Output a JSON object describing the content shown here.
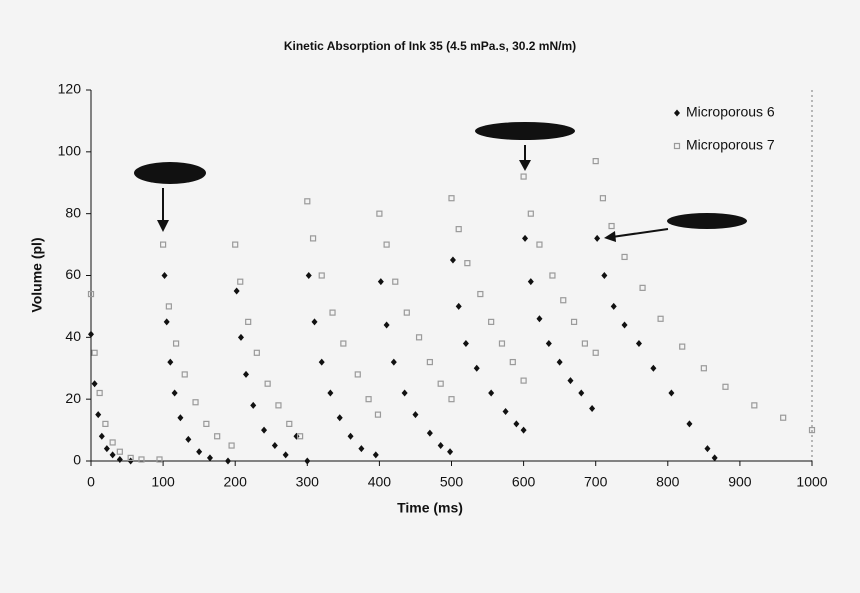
{
  "chart_data": {
    "type": "scatter",
    "title": "Kinetic Absorption of Ink 35 (4.5 mPa.s, 30.2 mN/m)",
    "x_label": "Time (ms)",
    "y_label": "Volume (pl)",
    "xlim": [
      0,
      1000
    ],
    "ylim": [
      0,
      120
    ],
    "xticks": [
      0,
      100,
      200,
      300,
      400,
      500,
      600,
      700,
      800,
      900,
      1000
    ],
    "yticks": [
      0,
      20,
      40,
      60,
      80,
      100,
      120
    ],
    "grid": false,
    "legend": "upper right",
    "series": [
      {
        "name": "Microporous 6",
        "color": "#111111",
        "marker": "diamond",
        "x": [
          0,
          5,
          10,
          15,
          22,
          30,
          40,
          55,
          102,
          105,
          110,
          116,
          124,
          135,
          150,
          165,
          190,
          202,
          208,
          215,
          225,
          240,
          255,
          270,
          285,
          300,
          302,
          310,
          320,
          332,
          345,
          360,
          375,
          395,
          402,
          410,
          420,
          435,
          450,
          470,
          485,
          498,
          502,
          510,
          520,
          535,
          555,
          575,
          590,
          600,
          602,
          610,
          622,
          635,
          650,
          665,
          680,
          695,
          702,
          712,
          725,
          740,
          760,
          780,
          805,
          830,
          855,
          865
        ],
        "values": [
          41,
          25,
          15,
          8,
          4,
          2,
          0.5,
          0,
          60,
          45,
          32,
          22,
          14,
          7,
          3,
          1,
          0,
          55,
          40,
          28,
          18,
          10,
          5,
          2,
          8,
          0,
          60,
          45,
          32,
          22,
          14,
          8,
          4,
          2,
          58,
          44,
          32,
          22,
          15,
          9,
          5,
          3,
          65,
          50,
          38,
          30,
          22,
          16,
          12,
          10,
          72,
          58,
          46,
          38,
          32,
          26,
          22,
          17,
          72,
          60,
          50,
          44,
          38,
          30,
          22,
          12,
          4,
          1
        ]
      },
      {
        "name": "Microporous 7",
        "color": "#9a9a9a",
        "marker": "square",
        "x": [
          0,
          5,
          12,
          20,
          30,
          40,
          55,
          70,
          95,
          100,
          108,
          118,
          130,
          145,
          160,
          175,
          195,
          200,
          207,
          218,
          230,
          245,
          260,
          275,
          290,
          300,
          308,
          320,
          335,
          350,
          370,
          385,
          398,
          400,
          410,
          422,
          438,
          455,
          470,
          485,
          500,
          500,
          510,
          522,
          540,
          555,
          570,
          585,
          600,
          600,
          610,
          622,
          640,
          655,
          670,
          685,
          700,
          700,
          710,
          722,
          740,
          765,
          790,
          820,
          850,
          880,
          920,
          960,
          1000
        ],
        "values": [
          54,
          35,
          22,
          12,
          6,
          3,
          1,
          0.5,
          0.5,
          70,
          50,
          38,
          28,
          19,
          12,
          8,
          5,
          70,
          58,
          45,
          35,
          25,
          18,
          12,
          8,
          84,
          72,
          60,
          48,
          38,
          28,
          20,
          15,
          80,
          70,
          58,
          48,
          40,
          32,
          25,
          20,
          85,
          75,
          64,
          54,
          45,
          38,
          32,
          26,
          92,
          80,
          70,
          60,
          52,
          45,
          38,
          35,
          97,
          85,
          76,
          66,
          56,
          46,
          37,
          30,
          24,
          18,
          14,
          10
        ]
      }
    ]
  }
}
